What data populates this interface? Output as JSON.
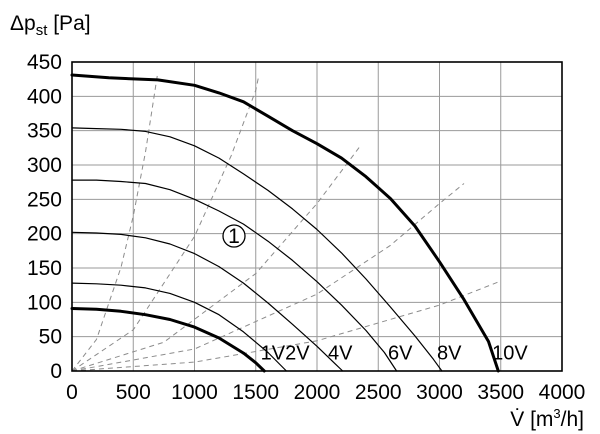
{
  "chart_data": {
    "type": "line",
    "y_label_main": "Δp",
    "y_label_sub": "st",
    "y_label_unit": " [Pa]",
    "x_label_symbol": "V̇",
    "x_label_unit_open": " [m",
    "x_label_unit_sup": "3",
    "x_label_unit_close": "/h]",
    "xlim": [
      0,
      4000
    ],
    "ylim": [
      0,
      450
    ],
    "x_ticks": [
      0,
      500,
      1000,
      1500,
      2000,
      2500,
      3000,
      3500,
      4000
    ],
    "y_ticks": [
      0,
      50,
      100,
      150,
      200,
      250,
      300,
      350,
      400,
      450
    ],
    "grid": true,
    "marker_label": "1",
    "series": [
      {
        "name": "1V",
        "bold": true,
        "points": [
          [
            0,
            91
          ],
          [
            200,
            90
          ],
          [
            400,
            87
          ],
          [
            600,
            82
          ],
          [
            800,
            75
          ],
          [
            1000,
            64
          ],
          [
            1200,
            48
          ],
          [
            1400,
            26
          ],
          [
            1500,
            12
          ],
          [
            1570,
            0
          ]
        ],
        "label_at": [
          1540,
          27
        ]
      },
      {
        "name": "2V",
        "bold": false,
        "points": [
          [
            0,
            128
          ],
          [
            200,
            127
          ],
          [
            400,
            125
          ],
          [
            600,
            121
          ],
          [
            800,
            113
          ],
          [
            1000,
            100
          ],
          [
            1200,
            82
          ],
          [
            1400,
            57
          ],
          [
            1600,
            27
          ],
          [
            1750,
            0
          ]
        ],
        "label_at": [
          1740,
          27
        ]
      },
      {
        "name": "4V",
        "bold": false,
        "points": [
          [
            0,
            202
          ],
          [
            200,
            201
          ],
          [
            400,
            199
          ],
          [
            600,
            194
          ],
          [
            800,
            185
          ],
          [
            1000,
            171
          ],
          [
            1200,
            152
          ],
          [
            1400,
            128
          ],
          [
            1600,
            99
          ],
          [
            1800,
            68
          ],
          [
            2000,
            36
          ],
          [
            2150,
            10
          ],
          [
            2210,
            0
          ]
        ],
        "label_at": [
          2090,
          27
        ]
      },
      {
        "name": "6V",
        "bold": false,
        "points": [
          [
            0,
            278
          ],
          [
            200,
            278
          ],
          [
            400,
            276
          ],
          [
            600,
            273
          ],
          [
            800,
            264
          ],
          [
            1000,
            250
          ],
          [
            1200,
            233
          ],
          [
            1400,
            214
          ],
          [
            1600,
            189
          ],
          [
            1800,
            161
          ],
          [
            2000,
            130
          ],
          [
            2200,
            96
          ],
          [
            2400,
            59
          ],
          [
            2550,
            27
          ],
          [
            2650,
            0
          ]
        ],
        "label_at": [
          2580,
          27
        ]
      },
      {
        "name": "8V",
        "bold": false,
        "points": [
          [
            0,
            354
          ],
          [
            200,
            353
          ],
          [
            400,
            352
          ],
          [
            600,
            349
          ],
          [
            800,
            341
          ],
          [
            1000,
            328
          ],
          [
            1200,
            310
          ],
          [
            1400,
            287
          ],
          [
            1600,
            263
          ],
          [
            1800,
            236
          ],
          [
            2000,
            206
          ],
          [
            2200,
            172
          ],
          [
            2400,
            134
          ],
          [
            2600,
            93
          ],
          [
            2800,
            51
          ],
          [
            2950,
            17
          ],
          [
            3020,
            0
          ]
        ],
        "label_at": [
          2980,
          27
        ]
      },
      {
        "name": "10V",
        "bold": true,
        "points": [
          [
            0,
            431
          ],
          [
            300,
            427
          ],
          [
            700,
            424
          ],
          [
            1000,
            416
          ],
          [
            1200,
            405
          ],
          [
            1400,
            392
          ],
          [
            1600,
            371
          ],
          [
            1800,
            350
          ],
          [
            2000,
            331
          ],
          [
            2200,
            310
          ],
          [
            2400,
            283
          ],
          [
            2600,
            251
          ],
          [
            2800,
            211
          ],
          [
            3000,
            159
          ],
          [
            3200,
            104
          ],
          [
            3400,
            43
          ],
          [
            3480,
            0
          ]
        ],
        "label_at": [
          3430,
          27
        ]
      }
    ],
    "system_curves": [
      {
        "points": [
          [
            0,
            0
          ],
          [
            200,
            46
          ],
          [
            400,
            151
          ],
          [
            500,
            226
          ],
          [
            600,
            319
          ],
          [
            700,
            435
          ]
        ]
      },
      {
        "points": [
          [
            0,
            0
          ],
          [
            500,
            60
          ],
          [
            1000,
            196
          ],
          [
            1300,
            314
          ],
          [
            1500,
            409
          ],
          [
            1520,
            426
          ]
        ]
      },
      {
        "points": [
          [
            0,
            0
          ],
          [
            750,
            42
          ],
          [
            1500,
            142
          ],
          [
            2000,
            244
          ],
          [
            2350,
            327
          ]
        ]
      },
      {
        "points": [
          [
            0,
            0
          ],
          [
            1000,
            32
          ],
          [
            2000,
            112
          ],
          [
            2600,
            183
          ],
          [
            3000,
            244
          ],
          [
            3200,
            273
          ]
        ]
      },
      {
        "points": [
          [
            0,
            0
          ],
          [
            1000,
            13
          ],
          [
            2000,
            44
          ],
          [
            3000,
            96
          ],
          [
            3500,
            131
          ]
        ]
      }
    ]
  }
}
